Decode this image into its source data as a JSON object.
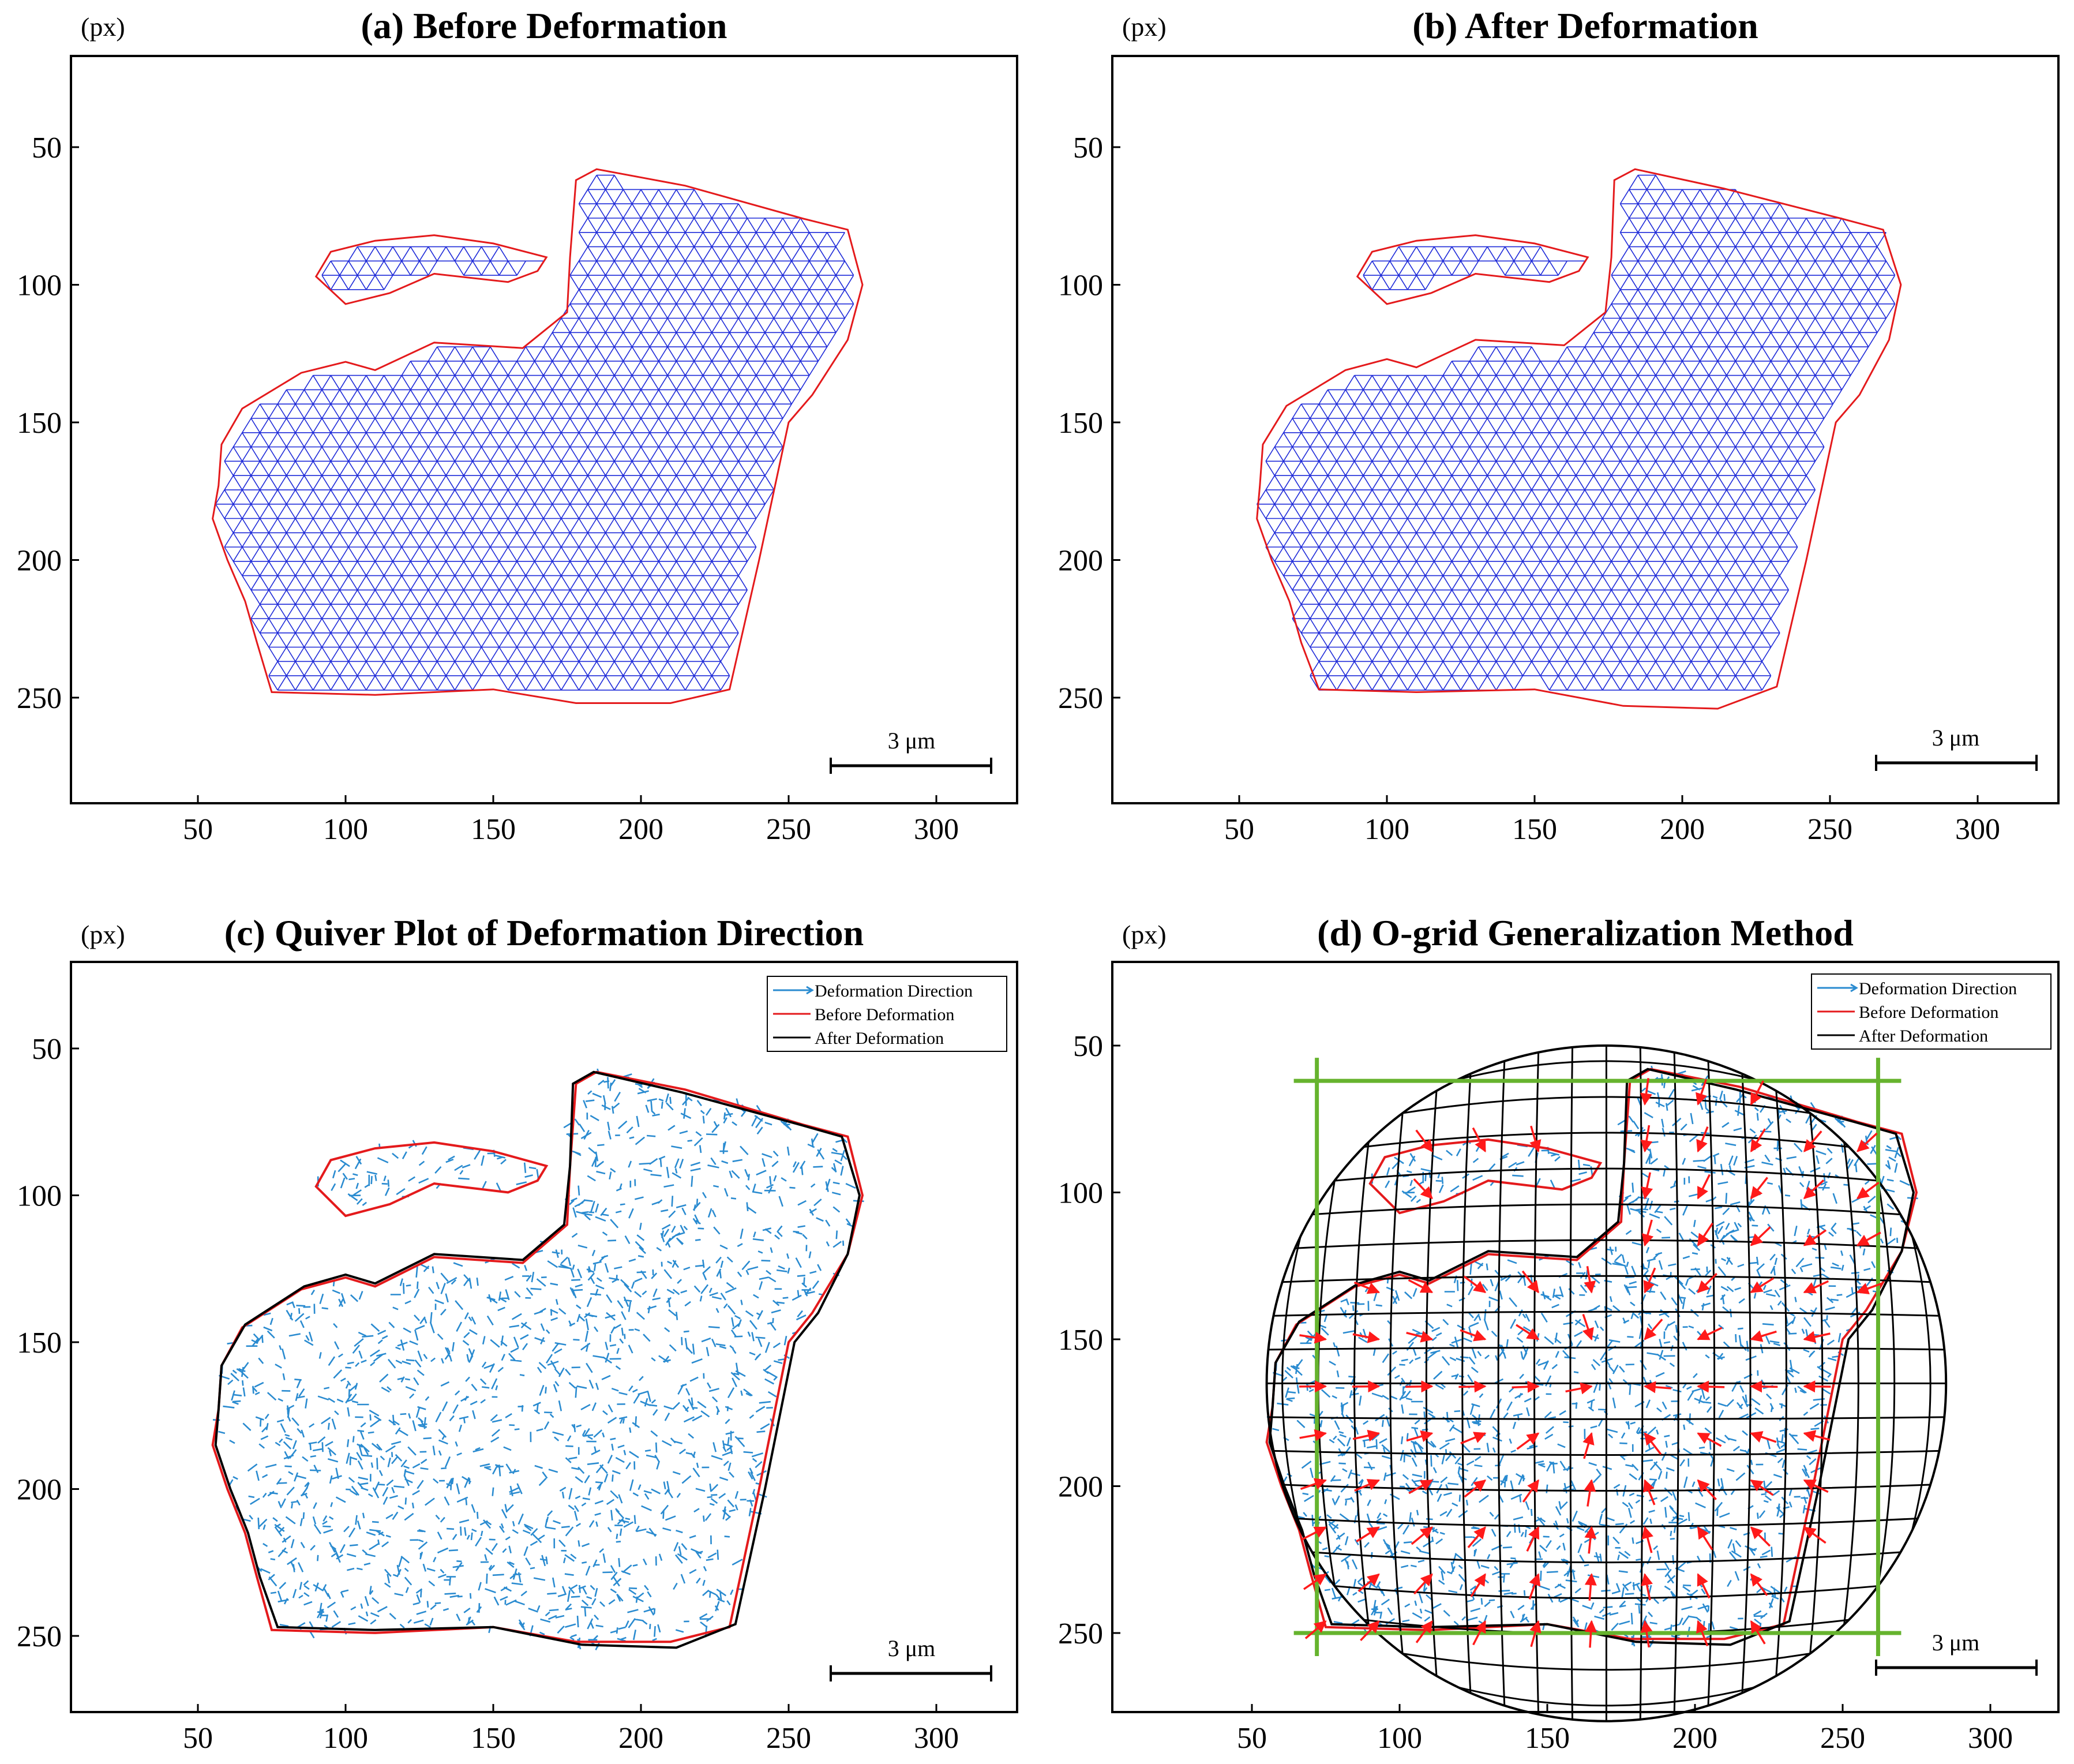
{
  "figure": {
    "unit": "(px)",
    "scalebar": "3 μm",
    "colors": {
      "mesh": "#1f2bd9",
      "before": "#e41a1c",
      "after": "#000000",
      "quiver": "#2a8bd0",
      "strain": "#ff1a1a",
      "box": "#66b32e"
    }
  },
  "chart_data": [
    {
      "type": "mesh",
      "panel": "a",
      "title": "(a) Before Deformation",
      "xticks": [
        50,
        100,
        150,
        200,
        250,
        300
      ],
      "yticks": [
        50,
        100,
        150,
        200,
        250
      ],
      "xlim": [
        8,
        325
      ],
      "ylim": [
        290,
        20
      ],
      "y_reversed": true,
      "boundary_before": [
        [
          75,
          248
        ],
        [
          110,
          249
        ],
        [
          150,
          247
        ],
        [
          178,
          252
        ],
        [
          210,
          252
        ],
        [
          230,
          247
        ],
        [
          240,
          200
        ],
        [
          250,
          150
        ],
        [
          258,
          140
        ],
        [
          270,
          120
        ],
        [
          275,
          100
        ],
        [
          270,
          80
        ],
        [
          255,
          76
        ],
        [
          215,
          64
        ],
        [
          185,
          58
        ],
        [
          178,
          62
        ],
        [
          176,
          90
        ],
        [
          175,
          110
        ],
        [
          160,
          123
        ],
        [
          130,
          121
        ],
        [
          110,
          131
        ],
        [
          100,
          128
        ],
        [
          85,
          132
        ],
        [
          65,
          145
        ],
        [
          58,
          158
        ],
        [
          57,
          173
        ],
        [
          55,
          185
        ],
        [
          60,
          200
        ],
        [
          62,
          205
        ],
        [
          66,
          215
        ],
        [
          70,
          230
        ],
        [
          75,
          248
        ]
      ],
      "notch": [
        [
          115,
          103
        ],
        [
          130,
          96
        ],
        [
          155,
          99
        ],
        [
          165,
          95
        ],
        [
          168,
          90
        ],
        [
          150,
          85
        ],
        [
          130,
          82
        ],
        [
          110,
          84
        ],
        [
          95,
          88
        ],
        [
          90,
          97
        ],
        [
          100,
          107
        ],
        [
          115,
          103
        ]
      ]
    },
    {
      "type": "mesh",
      "panel": "b",
      "title": "(b) After Deformation",
      "xticks": [
        50,
        100,
        150,
        200,
        250,
        300
      ],
      "yticks": [
        50,
        100,
        150,
        200,
        250
      ],
      "xlim": [
        8,
        325
      ],
      "ylim": [
        290,
        20
      ],
      "y_reversed": true,
      "boundary_after": [
        [
          77,
          247
        ],
        [
          110,
          248
        ],
        [
          150,
          247
        ],
        [
          180,
          253
        ],
        [
          212,
          254
        ],
        [
          232,
          246
        ],
        [
          242,
          200
        ],
        [
          252,
          150
        ],
        [
          260,
          140
        ],
        [
          270,
          120
        ],
        [
          274,
          100
        ],
        [
          268,
          80
        ],
        [
          254,
          76
        ],
        [
          214,
          65
        ],
        [
          184,
          58
        ],
        [
          177,
          62
        ],
        [
          176,
          90
        ],
        [
          174,
          110
        ],
        [
          160,
          122
        ],
        [
          130,
          120
        ],
        [
          110,
          130
        ],
        [
          100,
          127
        ],
        [
          86,
          131
        ],
        [
          66,
          144
        ],
        [
          58,
          158
        ],
        [
          57,
          173
        ],
        [
          56,
          185
        ],
        [
          61,
          200
        ],
        [
          63,
          205
        ],
        [
          67,
          215
        ],
        [
          71,
          230
        ],
        [
          77,
          247
        ]
      ]
    },
    {
      "type": "quiver",
      "panel": "c",
      "title": "(c) Quiver Plot of Deformation Direction",
      "xticks": [
        50,
        100,
        150,
        200,
        250,
        300
      ],
      "yticks": [
        50,
        100,
        150,
        200,
        250
      ],
      "xlim": [
        8,
        325
      ],
      "ylim": [
        270,
        20
      ],
      "y_reversed": true,
      "legend": {
        "position": "top-right",
        "entries": [
          "Deformation Direction",
          "Before Deformation",
          "After Deformation"
        ]
      }
    },
    {
      "type": "quiver",
      "panel": "d",
      "title": "(d) O-grid Generalization Method",
      "xticks": [
        50,
        100,
        150,
        200,
        250,
        300
      ],
      "yticks": [
        50,
        100,
        150,
        200,
        250
      ],
      "xlim": [
        8,
        325
      ],
      "ylim": [
        270,
        20
      ],
      "y_reversed": true,
      "ogrid": {
        "center": [
          170,
          165
        ],
        "radius": 115,
        "box": [
          [
            72,
            62
          ],
          [
            262,
            250
          ]
        ]
      },
      "legend": {
        "position": "top-right",
        "entries": [
          "Deformation Direction",
          "Before Deformation",
          "After Deformation"
        ]
      }
    }
  ]
}
